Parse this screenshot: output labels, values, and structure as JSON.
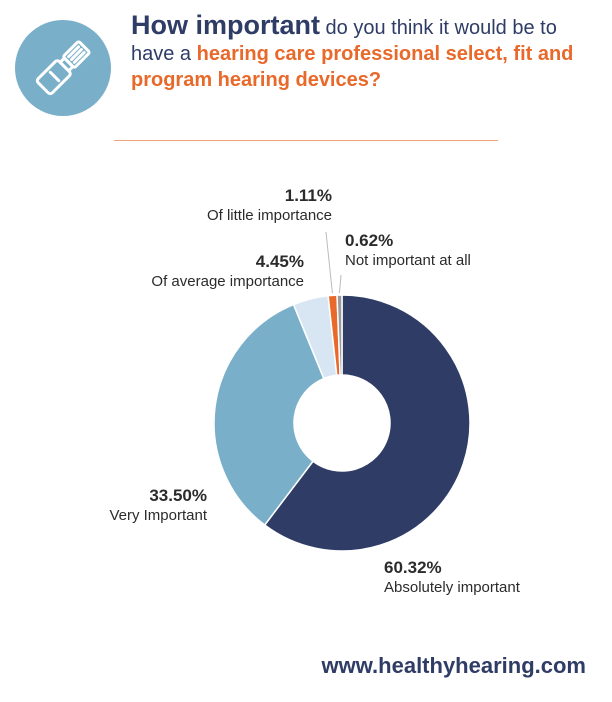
{
  "header": {
    "title_bold": "How important",
    "title_text1": " do you think it would be to have a ",
    "title_highlight": "hearing care professional select, fit and program hearing devices?",
    "icon": "hearing-device-icon"
  },
  "colors": {
    "navy": "#2e3c66",
    "orange": "#e8692a",
    "blue": "#79afc9",
    "light_blue": "#d8e6f3",
    "gray": "#9a9a9a"
  },
  "chart_data": {
    "type": "pie",
    "donut": true,
    "categories": [
      "Absolutely important",
      "Very Important",
      "Of average importance",
      "Of little importance",
      "Not important at all"
    ],
    "values": [
      60.32,
      33.5,
      4.45,
      1.11,
      0.62
    ],
    "labels": [
      "60.32%",
      "33.50%",
      "4.45%",
      "1.11%",
      "0.62%"
    ],
    "colors": [
      "#2e3c66",
      "#79afc9",
      "#d8e6f3",
      "#e8692a",
      "#9a9a9a"
    ]
  },
  "footer": {
    "url": "www.healthyhearing.com"
  }
}
